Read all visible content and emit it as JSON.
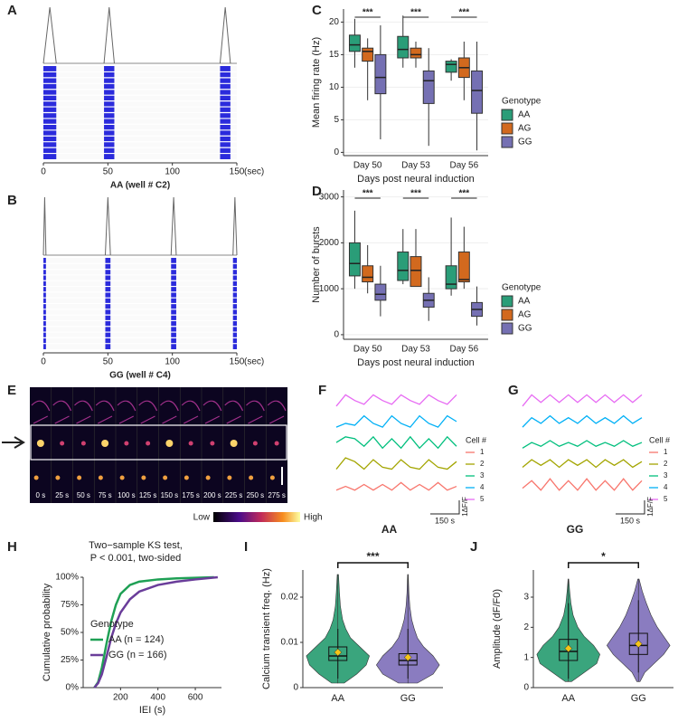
{
  "chart_data": [
    {
      "type": "raster",
      "panel": "A",
      "label": "AA (well # C2)",
      "x_unit": "(sec)",
      "xlim": [
        0,
        150
      ],
      "xticks": [
        0,
        50,
        100,
        150
      ],
      "rows": 16,
      "bursts": [
        [
          0,
          10
        ],
        [
          47,
          55
        ],
        [
          137,
          145
        ]
      ]
    },
    {
      "type": "raster",
      "panel": "B",
      "label": "GG (well # C4)",
      "x_unit": "(sec)",
      "xlim": [
        0,
        150
      ],
      "xticks": [
        0,
        50,
        100,
        150
      ],
      "rows": 16,
      "bursts": [
        [
          0,
          2
        ],
        [
          48,
          52
        ],
        [
          99,
          103
        ],
        [
          147,
          150
        ]
      ]
    },
    {
      "type": "box",
      "panel": "C",
      "y_label": "Mean firing rate (Hz)",
      "x_label": "Days post neural induction",
      "legend_title": "Genotype",
      "categories": [
        "Day 50",
        "Day 53",
        "Day 56"
      ],
      "annotations": [
        "***",
        "***",
        "***"
      ],
      "ylim": [
        -0.5,
        22
      ],
      "yticks": [
        0,
        5,
        10,
        15,
        20
      ],
      "series": [
        {
          "name": "AA",
          "color": "#2a9d78",
          "values": [
            [
              13,
              15.5,
              16.5,
              18,
              20.5
            ],
            [
              13,
              14.5,
              15.8,
              17.8,
              21
            ],
            [
              11,
              12.3,
              13.5,
              14,
              14.3
            ]
          ]
        },
        {
          "name": "AG",
          "color": "#d2691e",
          "values": [
            [
              8,
              14,
              15.5,
              16,
              17.5
            ],
            [
              13,
              14.5,
              15,
              16,
              17
            ],
            [
              8,
              11.5,
              13,
              14.5,
              17
            ]
          ]
        },
        {
          "name": "GG",
          "color": "#7570b3",
          "values": [
            [
              2,
              9,
              11.5,
              15,
              19.5
            ],
            [
              1,
              7.5,
              11,
              12.5,
              16
            ],
            [
              0.3,
              6,
              9.5,
              12.5,
              17
            ]
          ]
        }
      ]
    },
    {
      "type": "box",
      "panel": "D",
      "y_label": "Number of bursts",
      "x_label": "Days post neural induction",
      "legend_title": "Genotype",
      "categories": [
        "Day 50",
        "Day 53",
        "Day 56"
      ],
      "annotations": [
        "***",
        "***",
        "***"
      ],
      "ylim": [
        -100,
        3150
      ],
      "yticks": [
        0,
        1000,
        2000,
        3000
      ],
      "series": [
        {
          "name": "AA",
          "color": "#2a9d78",
          "values": [
            [
              1000,
              1280,
              1550,
              2000,
              2700
            ],
            [
              1100,
              1180,
              1400,
              1800,
              2300
            ],
            [
              850,
              1000,
              1100,
              1500,
              2550
            ]
          ]
        },
        {
          "name": "AG",
          "color": "#d2691e",
          "values": [
            [
              900,
              1150,
              1250,
              1500,
              1950
            ],
            [
              1050,
              1050,
              1400,
              1700,
              2300
            ],
            [
              1000,
              1150,
              1200,
              1800,
              2350
            ]
          ]
        },
        {
          "name": "GG",
          "color": "#7570b3",
          "values": [
            [
              400,
              750,
              880,
              1100,
              1500
            ],
            [
              300,
              600,
              750,
              900,
              1250
            ],
            [
              200,
              400,
              550,
              700,
              1050
            ]
          ]
        }
      ]
    },
    {
      "type": "image",
      "panel": "E",
      "time_labels": [
        "0 s",
        "25 s",
        "50 s",
        "75 s",
        "100 s",
        "125 s",
        "150 s",
        "175 s",
        "200 s",
        "225 s",
        "250 s",
        "275 s"
      ],
      "colorbar_labels": [
        "Low",
        "High"
      ]
    },
    {
      "type": "traces",
      "panel": "F",
      "label": "AA",
      "legend_title": "Cell #",
      "scale_labels": [
        "1ΔF/F",
        "150 s"
      ],
      "series": [
        {
          "name": "1",
          "color": "#f8766d",
          "values": [
            0.3,
            0.5,
            0.3,
            0.6,
            0.3,
            0.6,
            0.3,
            0.7,
            0.3,
            0.6,
            0.3,
            0.7,
            0.3,
            0.5
          ]
        },
        {
          "name": "2",
          "color": "#a3a500",
          "values": [
            0.3,
            0.9,
            0.7,
            0.3,
            0.8,
            0.4,
            0.3,
            0.8,
            0.4,
            0.3,
            0.8,
            0.4,
            0.3,
            0.7
          ]
        },
        {
          "name": "3",
          "color": "#00bf7d",
          "values": [
            0.6,
            0.9,
            0.8,
            0.4,
            0.9,
            0.3,
            0.8,
            0.3,
            0.9,
            0.3,
            0.8,
            0.3,
            0.9,
            0.4
          ]
        },
        {
          "name": "4",
          "color": "#00b0f6",
          "values": [
            0.3,
            0.5,
            0.4,
            0.9,
            0.5,
            0.3,
            0.9,
            0.5,
            0.3,
            0.9,
            0.5,
            0.3,
            0.9,
            0.6
          ]
        },
        {
          "name": "5",
          "color": "#e76bf3",
          "values": [
            0.3,
            0.9,
            0.6,
            0.4,
            0.9,
            0.6,
            0.4,
            0.9,
            0.6,
            0.4,
            0.9,
            0.6,
            0.4,
            0.9
          ]
        }
      ]
    },
    {
      "type": "traces",
      "panel": "G",
      "label": "GG",
      "legend_title": "Cell #",
      "scale_labels": [
        "1ΔF/F",
        "150 s"
      ],
      "series": [
        {
          "name": "1",
          "color": "#f8766d",
          "values": [
            0.4,
            0.8,
            0.3,
            0.9,
            0.3,
            0.8,
            0.3,
            0.9,
            0.3,
            0.8,
            0.3,
            0.9,
            0.3,
            0.8
          ]
        },
        {
          "name": "2",
          "color": "#a3a500",
          "values": [
            0.4,
            0.8,
            0.5,
            0.8,
            0.4,
            0.8,
            0.5,
            0.8,
            0.4,
            0.8,
            0.5,
            0.8,
            0.4,
            0.7
          ]
        },
        {
          "name": "3",
          "color": "#00bf7d",
          "values": [
            0.3,
            0.6,
            0.4,
            0.7,
            0.4,
            0.6,
            0.4,
            0.7,
            0.4,
            0.6,
            0.4,
            0.7,
            0.4,
            0.6
          ]
        },
        {
          "name": "4",
          "color": "#00b0f6",
          "values": [
            0.3,
            0.8,
            0.5,
            0.9,
            0.5,
            0.8,
            0.5,
            0.9,
            0.5,
            0.8,
            0.5,
            0.9,
            0.5,
            0.8
          ]
        },
        {
          "name": "5",
          "color": "#e76bf3",
          "values": [
            0.3,
            0.9,
            0.5,
            0.9,
            0.5,
            0.9,
            0.5,
            0.9,
            0.5,
            0.9,
            0.5,
            0.9,
            0.5,
            0.9
          ]
        }
      ]
    },
    {
      "type": "line",
      "panel": "H",
      "title": "Two−sample KS test,",
      "subtitle": "P < 0.001, two-sided",
      "x_label": "IEI (s)",
      "y_label": "Cumulative probability",
      "legend_title": "Genotype",
      "xlim": [
        0,
        740
      ],
      "xticks": [
        200,
        400,
        600
      ],
      "ylim": [
        0,
        100
      ],
      "yticks": [
        {
          "value": 0,
          "label": "0%"
        },
        {
          "value": 25,
          "label": "25%"
        },
        {
          "value": 50,
          "label": "50%"
        },
        {
          "value": 75,
          "label": "75%"
        },
        {
          "value": 100,
          "label": "100%"
        }
      ],
      "series": [
        {
          "name": "AA (n = 124)",
          "color": "#1fa055",
          "x": [
            60,
            80,
            100,
            125,
            150,
            175,
            200,
            250,
            300,
            400,
            500,
            700
          ],
          "values": [
            0,
            5,
            18,
            40,
            60,
            75,
            85,
            93,
            96,
            98,
            99,
            100
          ]
        },
        {
          "name": "GG (n = 166)",
          "color": "#6a3d9a",
          "x": [
            60,
            80,
            100,
            125,
            150,
            175,
            200,
            250,
            300,
            400,
            500,
            600,
            720
          ],
          "values": [
            0,
            4,
            12,
            28,
            45,
            58,
            68,
            80,
            87,
            93,
            96,
            98,
            100
          ]
        }
      ]
    },
    {
      "type": "violin",
      "panel": "I",
      "y_label": "Calcium transient freq. (Hz)",
      "annotation": "***",
      "categories": [
        "AA",
        "GG"
      ],
      "colors": [
        "#3aa57d",
        "#8a7cc0"
      ],
      "ylim": [
        0,
        0.026
      ],
      "yticks": [
        0,
        0.01,
        0.02
      ],
      "y_grid": [
        0.001,
        0.003,
        0.005,
        0.007,
        0.009,
        0.011,
        0.013,
        0.015,
        0.018,
        0.021,
        0.025
      ],
      "densities": [
        [
          0.2,
          0.6,
          0.9,
          1,
          0.7,
          0.4,
          0.25,
          0.15,
          0.08,
          0.05,
          0.02
        ],
        [
          0.3,
          0.8,
          1,
          0.8,
          0.5,
          0.3,
          0.2,
          0.12,
          0.06,
          0.03,
          0.01
        ]
      ],
      "boxes": [
        [
          0.002,
          0.006,
          0.007,
          0.009,
          0.013
        ],
        [
          0.002,
          0.005,
          0.006,
          0.0075,
          0.013
        ]
      ],
      "means": [
        0.0078,
        0.0067
      ]
    },
    {
      "type": "violin",
      "panel": "J",
      "y_label": "Amplitude (dF/F0)",
      "annotation": "*",
      "categories": [
        "AA",
        "GG"
      ],
      "colors": [
        "#3aa57d",
        "#8a7cc0"
      ],
      "ylim": [
        0,
        3.9
      ],
      "yticks": [
        0,
        1,
        2,
        3
      ],
      "y_grid": [
        0.2,
        0.5,
        0.8,
        1.1,
        1.4,
        1.7,
        2.0,
        2.4,
        2.8,
        3.2,
        3.6
      ],
      "densities": [
        [
          0.1,
          0.5,
          0.9,
          1,
          0.8,
          0.5,
          0.3,
          0.15,
          0.08,
          0.04,
          0.01
        ],
        [
          0.05,
          0.2,
          0.5,
          0.8,
          1,
          0.8,
          0.6,
          0.4,
          0.25,
          0.12,
          0.02
        ]
      ],
      "boxes": [
        [
          0.3,
          0.9,
          1.2,
          1.6,
          2.8
        ],
        [
          0.5,
          1.1,
          1.4,
          1.8,
          2.9
        ]
      ],
      "means": [
        1.3,
        1.45
      ]
    }
  ]
}
